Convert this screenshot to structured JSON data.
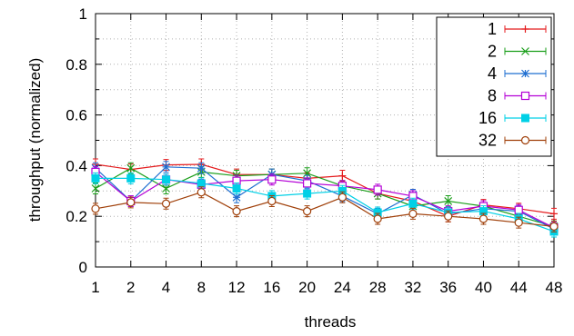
{
  "chart_data": {
    "type": "line",
    "xlabel": "threads",
    "ylabel": "throughput (normalized)",
    "categories": [
      "1",
      "2",
      "4",
      "8",
      "12",
      "16",
      "20",
      "24",
      "28",
      "32",
      "36",
      "40",
      "44",
      "48"
    ],
    "ylim": [
      0,
      1
    ],
    "yticks": [
      "0",
      "0.2",
      "0.4",
      "0.6",
      "0.8",
      "1"
    ],
    "grid": true,
    "legend_position": "top-right",
    "series": [
      {
        "name": "1",
        "color": "#e41a1c",
        "marker": "plus",
        "values": [
          0.405,
          0.385,
          0.403,
          0.405,
          0.365,
          0.365,
          0.35,
          0.36,
          0.29,
          0.26,
          0.2,
          0.245,
          0.23,
          0.21
        ]
      },
      {
        "name": "2",
        "color": "#1a9e1a",
        "marker": "cross",
        "values": [
          0.31,
          0.39,
          0.31,
          0.375,
          0.36,
          0.365,
          0.37,
          0.32,
          0.29,
          0.24,
          0.26,
          0.24,
          0.2,
          0.16
        ]
      },
      {
        "name": "4",
        "color": "#1f6fd1",
        "marker": "star",
        "values": [
          0.39,
          0.26,
          0.395,
          0.39,
          0.275,
          0.365,
          0.34,
          0.28,
          0.21,
          0.285,
          0.21,
          0.23,
          0.22,
          0.15
        ]
      },
      {
        "name": "8",
        "color": "#b400d6",
        "marker": "square",
        "values": [
          0.375,
          0.26,
          0.345,
          0.325,
          0.34,
          0.345,
          0.33,
          0.32,
          0.305,
          0.28,
          0.22,
          0.24,
          0.225,
          0.155
        ]
      },
      {
        "name": "16",
        "color": "#00d0e6",
        "marker": "filled-square",
        "values": [
          0.35,
          0.35,
          0.345,
          0.33,
          0.31,
          0.28,
          0.29,
          0.3,
          0.215,
          0.25,
          0.215,
          0.22,
          0.19,
          0.14
        ]
      },
      {
        "name": "32",
        "color": "#a0400a",
        "marker": "circle",
        "values": [
          0.23,
          0.255,
          0.25,
          0.295,
          0.22,
          0.26,
          0.22,
          0.275,
          0.19,
          0.21,
          0.2,
          0.19,
          0.175,
          0.16
        ]
      }
    ]
  }
}
